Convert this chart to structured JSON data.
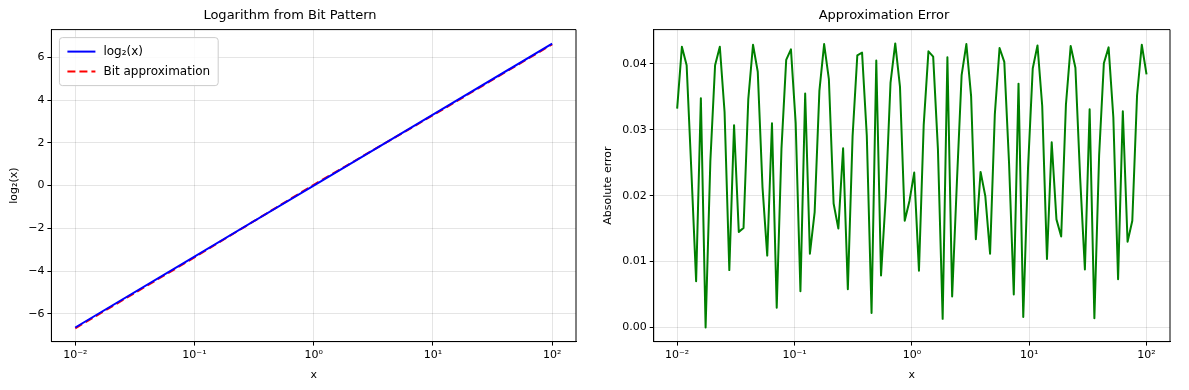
{
  "chart_data": [
    {
      "type": "line",
      "title": "Logarithm from Bit Pattern",
      "xlabel": "x",
      "ylabel": "log₂(x)",
      "log": "x",
      "grid": true,
      "legend": "top left",
      "xlim": [
        0.00631,
        158.5
      ],
      "xticks": [
        {
          "value": 0.01,
          "label": "10⁻²"
        },
        {
          "value": 0.1,
          "label": "10⁻¹"
        },
        {
          "value": 1,
          "label": "10⁰"
        },
        {
          "value": 10,
          "label": "10¹"
        },
        {
          "value": 100,
          "label": "10²"
        }
      ],
      "ylim": [
        -7.3,
        7.3
      ],
      "yticks": [
        {
          "value": -6,
          "label": "−6"
        },
        {
          "value": -4,
          "label": "−4"
        },
        {
          "value": -2,
          "label": "−2"
        },
        0,
        2,
        4,
        6
      ],
      "series": [
        {
          "name": "log₂(x)",
          "color": "#0000ff",
          "line_style": "solid",
          "x": [
            0.01,
            0.1,
            1,
            10,
            100
          ],
          "values": [
            -6.64,
            -3.32,
            0,
            3.32,
            6.64
          ]
        },
        {
          "name": "Bit approximation",
          "color": "#ff0000",
          "line_style": "dashed",
          "x": [
            0.01,
            0.1,
            1,
            10,
            100
          ],
          "values": [
            -6.68,
            -3.36,
            0.04,
            3.29,
            6.61
          ]
        }
      ]
    },
    {
      "type": "line",
      "title": "Approximation Error",
      "xlabel": "x",
      "ylabel": "Absolute error",
      "log": "x",
      "grid": true,
      "xlim": [
        0.00631,
        158.5
      ],
      "xticks": [
        {
          "value": 0.01,
          "label": "10⁻²"
        },
        {
          "value": 0.1,
          "label": "10⁻¹"
        },
        {
          "value": 1,
          "label": "10⁰"
        },
        {
          "value": 10,
          "label": "10¹"
        },
        {
          "value": 100,
          "label": "10²"
        }
      ],
      "ylim": [
        -0.00215,
        0.0452
      ],
      "yticks": [
        {
          "value": 0,
          "label": "0.00"
        },
        {
          "value": 0.01,
          "label": "0.01"
        },
        {
          "value": 0.02,
          "label": "0.02"
        },
        {
          "value": 0.03,
          "label": "0.03"
        },
        {
          "value": 0.04,
          "label": "0.04"
        }
      ],
      "series": [
        {
          "color": "#008000",
          "line_style": "solid",
          "x": [
            0.01,
            0.010975,
            0.012045,
            0.013219,
            0.014508,
            0.015923,
            0.017475,
            0.019179,
            0.021049,
            0.023101,
            0.025354,
            0.027826,
            0.030539,
            0.033516,
            0.036784,
            0.04037,
            0.044306,
            0.048626,
            0.053367,
            0.05857,
            0.064281,
            0.070548,
            0.077426,
            0.084975,
            0.09326,
            0.102353,
            0.112332,
            0.123285,
            0.135305,
            0.148497,
            0.162975,
            0.178865,
            0.196304,
            0.215443,
            0.236449,
            0.259502,
            0.284804,
            0.312572,
            0.343047,
            0.376494,
            0.413201,
            0.453488,
            0.497702,
            0.546228,
            0.599484,
            0.657933,
            0.722081,
            0.792483,
            0.869749,
            0.954548,
            1.047616,
            1.149757,
            1.261857,
            1.384886,
            1.519911,
            1.6681,
            1.830738,
            2.009233,
            2.205131,
            2.420128,
            2.656088,
            2.915053,
            3.199267,
            3.511192,
            3.853529,
            4.229243,
            4.641589,
            5.094138,
            5.59081,
            6.135907,
            6.734151,
            7.390722,
            8.111308,
            8.902151,
            9.7701,
            10.722672,
            11.76812,
            12.915497,
            14.174742,
            15.556761,
            17.073526,
            18.738174,
            20.565123,
            22.570197,
            24.770764,
            27.185882,
            29.836472,
            32.745492,
            35.938137,
            39.442061,
            43.287613,
            47.508102,
            52.140083,
            57.223677,
            62.802914,
            68.926121,
            75.646333,
            83.021757,
            91.116276,
            100
          ],
          "values": [
            0.0332,
            0.0426,
            0.0398,
            0.0237,
            0.007,
            0.0348,
            0,
            0.0252,
            0.0398,
            0.0426,
            0.0327,
            0.0087,
            0.0307,
            0.0145,
            0.0151,
            0.0346,
            0.0429,
            0.0388,
            0.0213,
            0.0109,
            0.031,
            0.003,
            0.0271,
            0.0406,
            0.0422,
            0.031,
            0.0055,
            0.0355,
            0.0112,
            0.0175,
            0.0359,
            0.043,
            0.0377,
            0.0188,
            0.015,
            0.0272,
            0.0058,
            0.029,
            0.0413,
            0.0417,
            0.0291,
            0.0022,
            0.0405,
            0.0079,
            0.0198,
            0.0371,
            0.0431,
            0.0365,
            0.0162,
            0.0192,
            0.0235,
            0.0086,
            0.0307,
            0.0419,
            0.0411,
            0.0271,
            0.0013,
            0.041,
            0.0047,
            0.022,
            0.0383,
            0.043,
            0.0351,
            0.0134,
            0.0236,
            0.0199,
            0.0112,
            0.0323,
            0.0424,
            0.0403,
            0.025,
            0.005,
            0.037,
            0.0016,
            0.0241,
            0.0393,
            0.0428,
            0.0336,
            0.0104,
            0.0281,
            0.0164,
            0.0138,
            0.0338,
            0.0427,
            0.0394,
            0.0227,
            0.0088,
            0.0331,
            0.0014,
            0.0261,
            0.0401,
            0.0425,
            0.0319,
            0.0073,
            0.0328,
            0.013,
            0.0162,
            0.0352,
            0.0429,
            0.0384
          ]
        }
      ]
    }
  ]
}
